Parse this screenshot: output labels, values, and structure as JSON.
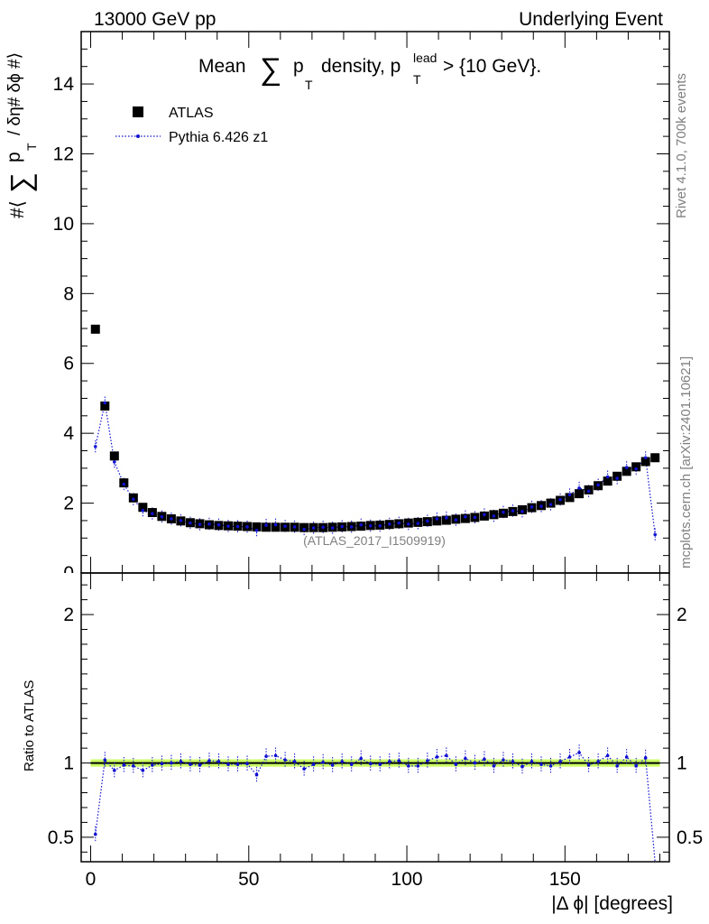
{
  "header": {
    "left": "13000 GeV pp",
    "right": "Underlying Event"
  },
  "side_labels": {
    "rivet": "Rivet 4.1.0,  700k events",
    "mcplots": "mcplots.cern.ch [arXiv:2401.10621]"
  },
  "chart_data": [
    {
      "type": "scatter",
      "panel": "main",
      "title": {
        "prefix": "Mean",
        "sum": "∑",
        "p": "p",
        "sub_T": "T",
        "middle": "density, p",
        "sup_lead": "lead",
        "sub_T2": "T",
        "suffix": "> {10 GeV}."
      },
      "ylabel": {
        "open": "#⟨",
        "sum": "∑",
        "p": "p",
        "sub_T": "T",
        "rest": "/ δη# δϕ #⟩"
      },
      "watermark": "(ATLAS_2017_I1509919)",
      "xlim": [
        -3,
        183
      ],
      "ylim": [
        0,
        15.5
      ],
      "yticks": [
        0,
        2,
        4,
        6,
        8,
        10,
        12,
        14
      ],
      "ytick_labels": [
        "0",
        "2",
        "4",
        "6",
        "8",
        "10",
        "12",
        "14"
      ],
      "legend": {
        "position": "top-left",
        "entries": [
          "ATLAS",
          "Pythia 6.426 z1"
        ]
      },
      "series": [
        {
          "name": "ATLAS",
          "style": "black-square",
          "color": "#000000",
          "x": [
            1.5,
            4.5,
            7.5,
            10.5,
            13.5,
            16.5,
            19.5,
            22.5,
            25.5,
            28.5,
            31.5,
            34.5,
            37.5,
            40.5,
            43.5,
            46.5,
            49.5,
            52.5,
            55.5,
            58.5,
            61.5,
            64.5,
            67.5,
            70.5,
            73.5,
            76.5,
            79.5,
            82.5,
            85.5,
            88.5,
            91.5,
            94.5,
            97.5,
            100.5,
            103.5,
            106.5,
            109.5,
            112.5,
            115.5,
            118.5,
            121.5,
            124.5,
            127.5,
            130.5,
            133.5,
            136.5,
            139.5,
            142.5,
            145.5,
            148.5,
            151.5,
            154.5,
            157.5,
            160.5,
            163.5,
            166.5,
            169.5,
            172.5,
            175.5,
            178.5
          ],
          "y": [
            6.98,
            4.78,
            3.35,
            2.58,
            2.15,
            1.88,
            1.73,
            1.62,
            1.55,
            1.49,
            1.44,
            1.41,
            1.38,
            1.36,
            1.35,
            1.34,
            1.33,
            1.32,
            1.31,
            1.31,
            1.31,
            1.31,
            1.3,
            1.3,
            1.3,
            1.31,
            1.32,
            1.33,
            1.34,
            1.36,
            1.37,
            1.39,
            1.41,
            1.43,
            1.45,
            1.47,
            1.49,
            1.51,
            1.54,
            1.56,
            1.59,
            1.63,
            1.67,
            1.71,
            1.76,
            1.81,
            1.87,
            1.93,
            2.0,
            2.08,
            2.16,
            2.27,
            2.38,
            2.5,
            2.63,
            2.77,
            2.91,
            3.04,
            3.19,
            3.3
          ]
        },
        {
          "name": "Pythia 6.426 z1",
          "style": "blue-dotted-points",
          "color": "#1010d0",
          "x": [
            1.5,
            4.5,
            7.5,
            10.5,
            13.5,
            16.5,
            19.5,
            22.5,
            25.5,
            28.5,
            31.5,
            34.5,
            37.5,
            40.5,
            43.5,
            46.5,
            49.5,
            52.5,
            55.5,
            58.5,
            61.5,
            64.5,
            67.5,
            70.5,
            73.5,
            76.5,
            79.5,
            82.5,
            85.5,
            88.5,
            91.5,
            94.5,
            97.5,
            100.5,
            103.5,
            106.5,
            109.5,
            112.5,
            115.5,
            118.5,
            121.5,
            124.5,
            127.5,
            130.5,
            133.5,
            136.5,
            139.5,
            142.5,
            145.5,
            148.5,
            151.5,
            154.5,
            157.5,
            160.5,
            163.5,
            166.5,
            169.5,
            172.5,
            175.5,
            178.5
          ],
          "y": [
            3.62,
            4.87,
            3.18,
            2.54,
            2.11,
            1.79,
            1.7,
            1.61,
            1.55,
            1.5,
            1.43,
            1.39,
            1.4,
            1.38,
            1.34,
            1.33,
            1.32,
            1.22,
            1.37,
            1.38,
            1.34,
            1.32,
            1.25,
            1.29,
            1.31,
            1.29,
            1.33,
            1.32,
            1.38,
            1.35,
            1.35,
            1.4,
            1.43,
            1.4,
            1.42,
            1.49,
            1.55,
            1.58,
            1.52,
            1.61,
            1.59,
            1.67,
            1.63,
            1.74,
            1.78,
            1.76,
            1.89,
            1.91,
            1.96,
            2.1,
            2.24,
            2.43,
            2.34,
            2.52,
            2.75,
            2.71,
            3.02,
            2.98,
            3.3,
            1.1
          ]
        }
      ]
    },
    {
      "type": "line",
      "panel": "ratio",
      "ylabel": "Ratio to ATLAS",
      "xlabel": "|Δ ϕ| [degrees]",
      "xlim": [
        -3,
        183
      ],
      "ylim": [
        0.335,
        2.28
      ],
      "yticks": [
        0.5,
        1,
        2
      ],
      "ytick_labels": [
        "0.5",
        "1",
        "2"
      ],
      "xticks": [
        0,
        50,
        100,
        150
      ],
      "xtick_labels": [
        "0",
        "50",
        "100",
        "150"
      ],
      "reference_line": 1,
      "band": [
        0.975,
        1.025
      ],
      "band_color": "#ccff66",
      "series": [
        {
          "name": "Pythia 6.426 z1",
          "color": "#1010d0",
          "x": [
            1.5,
            4.5,
            7.5,
            10.5,
            13.5,
            16.5,
            19.5,
            22.5,
            25.5,
            28.5,
            31.5,
            34.5,
            37.5,
            40.5,
            43.5,
            46.5,
            49.5,
            52.5,
            55.5,
            58.5,
            61.5,
            64.5,
            67.5,
            70.5,
            73.5,
            76.5,
            79.5,
            82.5,
            85.5,
            88.5,
            91.5,
            94.5,
            97.5,
            100.5,
            103.5,
            106.5,
            109.5,
            112.5,
            115.5,
            118.5,
            121.5,
            124.5,
            127.5,
            130.5,
            133.5,
            136.5,
            139.5,
            142.5,
            145.5,
            148.5,
            151.5,
            154.5,
            157.5,
            160.5,
            163.5,
            166.5,
            169.5,
            172.5,
            175.5,
            178.5
          ],
          "y": [
            0.52,
            1.02,
            0.95,
            0.985,
            0.98,
            0.95,
            0.985,
            0.995,
            1.0,
            1.01,
            0.99,
            0.985,
            1.015,
            1.01,
            0.99,
            0.99,
            0.995,
            0.92,
            1.045,
            1.05,
            1.02,
            1.01,
            0.96,
            0.99,
            1.005,
            0.985,
            1.01,
            0.99,
            1.03,
            0.995,
            0.99,
            1.01,
            1.015,
            0.98,
            0.98,
            1.015,
            1.04,
            1.05,
            0.99,
            1.03,
            1.0,
            1.025,
            0.98,
            1.02,
            1.01,
            0.975,
            1.01,
            0.99,
            0.98,
            1.01,
            1.04,
            1.07,
            0.985,
            1.01,
            1.05,
            0.98,
            1.04,
            0.98,
            1.035,
            0.33
          ]
        }
      ]
    }
  ]
}
